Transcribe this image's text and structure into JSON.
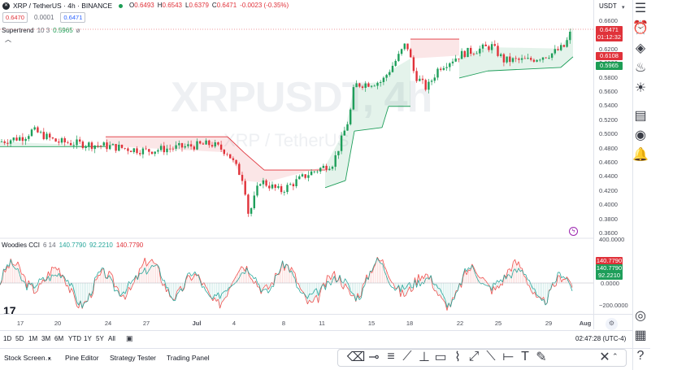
{
  "header": {
    "symbol": "XRP / TetherUS · 4h · BINANCE",
    "ohlc": {
      "o_label": "O",
      "o": "0.6493",
      "h_label": "H",
      "h": "0.6543",
      "l_label": "L",
      "l": "0.6379",
      "c_label": "C",
      "c": "0.6471",
      "chg": "-0.0023 (-0.35%)"
    },
    "bid": "0.6470",
    "spread": "0.0001",
    "ask": "0.6471",
    "supertrend": {
      "name": "Supertrend",
      "params": "10 3",
      "value": "0.5965"
    }
  },
  "watermark": {
    "line1": "XRPUSDT, 4h",
    "line2": "XRP / TetherUS"
  },
  "price_axis": {
    "currency": "USDT",
    "ticks": [
      "0.6600",
      "0.6400",
      "0.6200",
      "0.6000",
      "0.5800",
      "0.5600",
      "0.5400",
      "0.5200",
      "0.5000",
      "0.4800",
      "0.4600",
      "0.4400",
      "0.4200",
      "0.4000",
      "0.3800",
      "0.3600"
    ],
    "last_price": "0.6471",
    "countdown": "01:12:32",
    "red_tag": "0.6108",
    "green_tag": "0.5965"
  },
  "cci": {
    "name": "Woodies CCI",
    "params": "6 14",
    "v1": "140.7790",
    "v2": "92.2210",
    "v3": "140.7790",
    "ticks": [
      "400.0000",
      "0.0000",
      "−200.0000"
    ],
    "tag1": "140.7790",
    "tag2": "140.7790",
    "tag3": "92.2210"
  },
  "time_axis": {
    "labels": [
      "17",
      "20",
      "24",
      "27",
      "Jul",
      "4",
      "8",
      "11",
      "15",
      "18",
      "22",
      "25",
      "29",
      "Aug"
    ]
  },
  "timeframes": [
    "1D",
    "5D",
    "1M",
    "3M",
    "6M",
    "YTD",
    "1Y",
    "5Y",
    "All"
  ],
  "clock": "02:47:28 (UTC-4)",
  "bottom_tabs": [
    "Stock Screen…",
    "Pine Editor",
    "Strategy Tester",
    "Trading Panel"
  ],
  "colors": {
    "up": "#26a69a",
    "down": "#ef5350",
    "candle_up": "#1e9e5a",
    "candle_down": "#e0323a",
    "accent": "#2962ff"
  }
}
